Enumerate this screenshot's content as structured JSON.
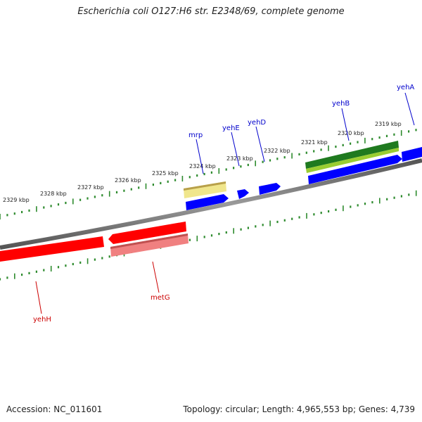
{
  "title": "Escherichia coli O127:H6 str. E2348/69, complete genome",
  "footer": {
    "accession": "Accession: NC_011601",
    "stats": "Topology: circular; Length: 4,965,553 bp; Genes: 4,739"
  },
  "scale_labels": [
    "2319 kbp",
    "2320 kbp",
    "2321 kbp",
    "2322 kbp",
    "2323 kbp",
    "2324 kbp",
    "2325 kbp",
    "2326 kbp",
    "2327 kbp",
    "2328 kbp",
    "2329 kbp"
  ],
  "genes_forward": [
    "yehA",
    "yehB",
    "yehD",
    "yehE",
    "mrp"
  ],
  "genes_reverse": [
    "metG",
    "yehH"
  ],
  "colors": {
    "backbone": "#808080",
    "forward_gene": "#0000ff",
    "reverse_gene": "#ff0000",
    "reverse_gene_light": "#f08080",
    "ticks": "#2e8b2e",
    "feature_dark_green": "#1f7a1f",
    "feature_light_green": "#9acd32",
    "feature_khaki": "#f0e68c",
    "label_forward": "#0000cc",
    "label_reverse": "#cc0000"
  }
}
